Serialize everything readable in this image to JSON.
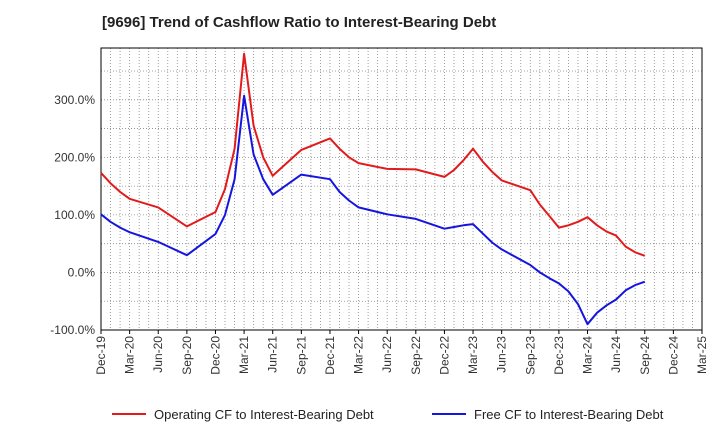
{
  "chart_data": {
    "type": "line",
    "title": "[9696]  Trend of Cashflow Ratio to Interest-Bearing Debt",
    "xlabel": "",
    "ylabel": "",
    "ylim": [
      -100,
      390
    ],
    "y_ticks": [
      -100,
      0,
      100,
      200,
      300
    ],
    "y_tick_labels": [
      "-100.0%",
      "0.0%",
      "100.0%",
      "200.0%",
      "300.0%"
    ],
    "x_tick_labels": [
      "Dec-19",
      "Mar-20",
      "Jun-20",
      "Sep-20",
      "Dec-20",
      "Mar-21",
      "Jun-21",
      "Sep-21",
      "Dec-21",
      "Mar-22",
      "Jun-22",
      "Sep-22",
      "Dec-22",
      "Mar-23",
      "Jun-23",
      "Sep-23",
      "Dec-23",
      "Mar-24",
      "Jun-24",
      "Sep-24",
      "Dec-24",
      "Mar-25"
    ],
    "grid": true,
    "legend_position": "bottom",
    "x": [
      "Dec-19",
      "Jan-20",
      "Feb-20",
      "Mar-20",
      "Jun-20",
      "Sep-20",
      "Dec-20",
      "Jan-21",
      "Feb-21",
      "Mar-21",
      "Apr-21",
      "May-21",
      "Jun-21",
      "Sep-21",
      "Dec-21",
      "Jan-22",
      "Feb-22",
      "Mar-22",
      "Jun-22",
      "Sep-22",
      "Dec-22",
      "Jan-23",
      "Feb-23",
      "Mar-23",
      "Apr-23",
      "May-23",
      "Jun-23",
      "Sep-23",
      "Oct-23",
      "Nov-23",
      "Dec-23",
      "Jan-24",
      "Feb-24",
      "Mar-24",
      "Apr-24",
      "May-24",
      "Jun-24",
      "Jul-24",
      "Aug-24",
      "Sep-24"
    ],
    "series": [
      {
        "name": "Operating CF to Interest-Bearing Debt",
        "color": "#e31a1c",
        "values": [
          173,
          155,
          140,
          128,
          113,
          80,
          105,
          145,
          215,
          380,
          255,
          200,
          168,
          213,
          233,
          215,
          200,
          190,
          180,
          179,
          166,
          178,
          195,
          215,
          193,
          175,
          160,
          143,
          118,
          98,
          78,
          82,
          88,
          96,
          82,
          71,
          64,
          45,
          35,
          29
        ]
      },
      {
        "name": "Free CF to Interest-Bearing Debt",
        "color": "#1515e0",
        "values": [
          101,
          88,
          78,
          70,
          53,
          30,
          67,
          100,
          162,
          307,
          205,
          162,
          135,
          170,
          162,
          140,
          125,
          113,
          101,
          93,
          76,
          79,
          82,
          84,
          68,
          52,
          40,
          13,
          0,
          -10,
          -19,
          -33,
          -55,
          -90,
          -70,
          -57,
          -47,
          -31,
          -22,
          -16
        ]
      }
    ]
  }
}
